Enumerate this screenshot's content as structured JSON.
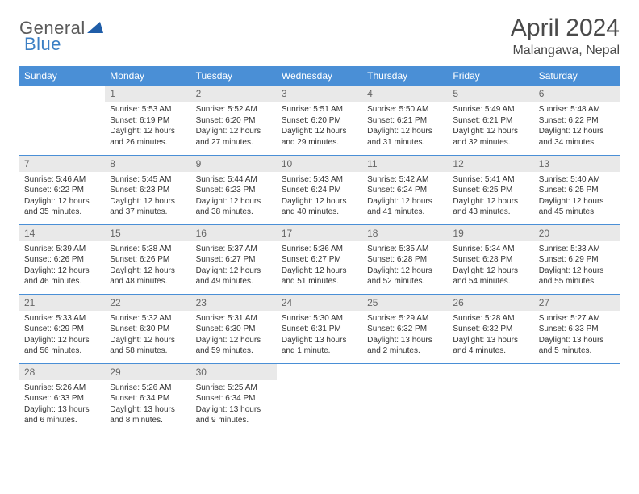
{
  "logo": {
    "general": "General",
    "blue": "Blue"
  },
  "title": "April 2024",
  "location": "Malangawa, Nepal",
  "colors": {
    "header_bg": "#4a8fd6",
    "header_fg": "#ffffff",
    "daynum_bg": "#e9e9e9",
    "daynum_fg": "#666666",
    "border": "#4a8fd6",
    "logo_accent": "#1f5da8"
  },
  "weekdays": [
    "Sunday",
    "Monday",
    "Tuesday",
    "Wednesday",
    "Thursday",
    "Friday",
    "Saturday"
  ],
  "font": {
    "title_size": 30,
    "location_size": 16,
    "header_size": 12,
    "body_size": 10
  },
  "days": [
    {
      "n": "",
      "sr": "",
      "ss": "",
      "dl": ""
    },
    {
      "n": "1",
      "sr": "Sunrise: 5:53 AM",
      "ss": "Sunset: 6:19 PM",
      "dl": "Daylight: 12 hours and 26 minutes."
    },
    {
      "n": "2",
      "sr": "Sunrise: 5:52 AM",
      "ss": "Sunset: 6:20 PM",
      "dl": "Daylight: 12 hours and 27 minutes."
    },
    {
      "n": "3",
      "sr": "Sunrise: 5:51 AM",
      "ss": "Sunset: 6:20 PM",
      "dl": "Daylight: 12 hours and 29 minutes."
    },
    {
      "n": "4",
      "sr": "Sunrise: 5:50 AM",
      "ss": "Sunset: 6:21 PM",
      "dl": "Daylight: 12 hours and 31 minutes."
    },
    {
      "n": "5",
      "sr": "Sunrise: 5:49 AM",
      "ss": "Sunset: 6:21 PM",
      "dl": "Daylight: 12 hours and 32 minutes."
    },
    {
      "n": "6",
      "sr": "Sunrise: 5:48 AM",
      "ss": "Sunset: 6:22 PM",
      "dl": "Daylight: 12 hours and 34 minutes."
    },
    {
      "n": "7",
      "sr": "Sunrise: 5:46 AM",
      "ss": "Sunset: 6:22 PM",
      "dl": "Daylight: 12 hours and 35 minutes."
    },
    {
      "n": "8",
      "sr": "Sunrise: 5:45 AM",
      "ss": "Sunset: 6:23 PM",
      "dl": "Daylight: 12 hours and 37 minutes."
    },
    {
      "n": "9",
      "sr": "Sunrise: 5:44 AM",
      "ss": "Sunset: 6:23 PM",
      "dl": "Daylight: 12 hours and 38 minutes."
    },
    {
      "n": "10",
      "sr": "Sunrise: 5:43 AM",
      "ss": "Sunset: 6:24 PM",
      "dl": "Daylight: 12 hours and 40 minutes."
    },
    {
      "n": "11",
      "sr": "Sunrise: 5:42 AM",
      "ss": "Sunset: 6:24 PM",
      "dl": "Daylight: 12 hours and 41 minutes."
    },
    {
      "n": "12",
      "sr": "Sunrise: 5:41 AM",
      "ss": "Sunset: 6:25 PM",
      "dl": "Daylight: 12 hours and 43 minutes."
    },
    {
      "n": "13",
      "sr": "Sunrise: 5:40 AM",
      "ss": "Sunset: 6:25 PM",
      "dl": "Daylight: 12 hours and 45 minutes."
    },
    {
      "n": "14",
      "sr": "Sunrise: 5:39 AM",
      "ss": "Sunset: 6:26 PM",
      "dl": "Daylight: 12 hours and 46 minutes."
    },
    {
      "n": "15",
      "sr": "Sunrise: 5:38 AM",
      "ss": "Sunset: 6:26 PM",
      "dl": "Daylight: 12 hours and 48 minutes."
    },
    {
      "n": "16",
      "sr": "Sunrise: 5:37 AM",
      "ss": "Sunset: 6:27 PM",
      "dl": "Daylight: 12 hours and 49 minutes."
    },
    {
      "n": "17",
      "sr": "Sunrise: 5:36 AM",
      "ss": "Sunset: 6:27 PM",
      "dl": "Daylight: 12 hours and 51 minutes."
    },
    {
      "n": "18",
      "sr": "Sunrise: 5:35 AM",
      "ss": "Sunset: 6:28 PM",
      "dl": "Daylight: 12 hours and 52 minutes."
    },
    {
      "n": "19",
      "sr": "Sunrise: 5:34 AM",
      "ss": "Sunset: 6:28 PM",
      "dl": "Daylight: 12 hours and 54 minutes."
    },
    {
      "n": "20",
      "sr": "Sunrise: 5:33 AM",
      "ss": "Sunset: 6:29 PM",
      "dl": "Daylight: 12 hours and 55 minutes."
    },
    {
      "n": "21",
      "sr": "Sunrise: 5:33 AM",
      "ss": "Sunset: 6:29 PM",
      "dl": "Daylight: 12 hours and 56 minutes."
    },
    {
      "n": "22",
      "sr": "Sunrise: 5:32 AM",
      "ss": "Sunset: 6:30 PM",
      "dl": "Daylight: 12 hours and 58 minutes."
    },
    {
      "n": "23",
      "sr": "Sunrise: 5:31 AM",
      "ss": "Sunset: 6:30 PM",
      "dl": "Daylight: 12 hours and 59 minutes."
    },
    {
      "n": "24",
      "sr": "Sunrise: 5:30 AM",
      "ss": "Sunset: 6:31 PM",
      "dl": "Daylight: 13 hours and 1 minute."
    },
    {
      "n": "25",
      "sr": "Sunrise: 5:29 AM",
      "ss": "Sunset: 6:32 PM",
      "dl": "Daylight: 13 hours and 2 minutes."
    },
    {
      "n": "26",
      "sr": "Sunrise: 5:28 AM",
      "ss": "Sunset: 6:32 PM",
      "dl": "Daylight: 13 hours and 4 minutes."
    },
    {
      "n": "27",
      "sr": "Sunrise: 5:27 AM",
      "ss": "Sunset: 6:33 PM",
      "dl": "Daylight: 13 hours and 5 minutes."
    },
    {
      "n": "28",
      "sr": "Sunrise: 5:26 AM",
      "ss": "Sunset: 6:33 PM",
      "dl": "Daylight: 13 hours and 6 minutes."
    },
    {
      "n": "29",
      "sr": "Sunrise: 5:26 AM",
      "ss": "Sunset: 6:34 PM",
      "dl": "Daylight: 13 hours and 8 minutes."
    },
    {
      "n": "30",
      "sr": "Sunrise: 5:25 AM",
      "ss": "Sunset: 6:34 PM",
      "dl": "Daylight: 13 hours and 9 minutes."
    },
    {
      "n": "",
      "sr": "",
      "ss": "",
      "dl": ""
    },
    {
      "n": "",
      "sr": "",
      "ss": "",
      "dl": ""
    },
    {
      "n": "",
      "sr": "",
      "ss": "",
      "dl": ""
    },
    {
      "n": "",
      "sr": "",
      "ss": "",
      "dl": ""
    }
  ]
}
